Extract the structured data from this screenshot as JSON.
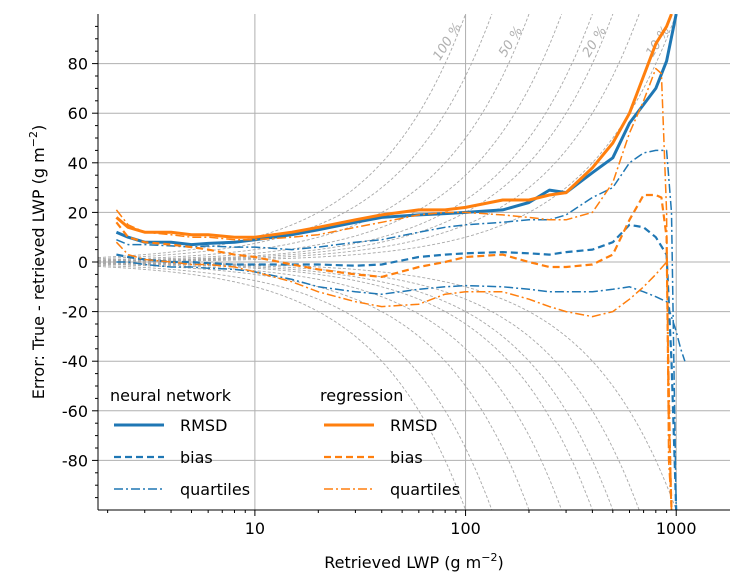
{
  "chart_data": {
    "type": "line",
    "title": "",
    "xlabel": "Retrieved LWP (g m",
    "xlabel_unit_sup": "−2",
    "xlabel_close": ")",
    "ylabel": "Error: True - retrieved LWP (g m",
    "ylabel_unit_sup": "−2",
    "ylabel_close": ")",
    "x_scale": "log",
    "xlim": [
      1.8,
      1800
    ],
    "ylim": [
      -100,
      100
    ],
    "grid": true,
    "x_ticks": [
      {
        "v": 10,
        "label": "10"
      },
      {
        "v": 100,
        "label": "100"
      },
      {
        "v": 1000,
        "label": "1000"
      }
    ],
    "y_ticks": [
      {
        "v": 80,
        "label": "80"
      },
      {
        "v": 60,
        "label": "60"
      },
      {
        "v": 40,
        "label": "40"
      },
      {
        "v": 20,
        "label": "20"
      },
      {
        "v": 0,
        "label": "0"
      },
      {
        "v": -20,
        "label": "-20"
      },
      {
        "v": -40,
        "label": "-40"
      },
      {
        "v": -60,
        "label": "-60"
      },
      {
        "v": -80,
        "label": "-80"
      }
    ],
    "relative_error_curves": [
      {
        "pct": 100,
        "label": "100 %"
      },
      {
        "pct": 50,
        "label": "50 %"
      },
      {
        "pct": 20,
        "label": "20 %"
      },
      {
        "pct": 10,
        "label": "10 %"
      }
    ],
    "legend": {
      "placement": "lower-left",
      "groups": [
        {
          "title": "neural network",
          "color": "#1f77b4",
          "entries": [
            {
              "label": "RMSD",
              "style": "solid"
            },
            {
              "label": "bias",
              "style": "dashed"
            },
            {
              "label": "quartiles",
              "style": "dashdot"
            }
          ]
        },
        {
          "title": "regression",
          "color": "#ff7f0e",
          "entries": [
            {
              "label": "RMSD",
              "style": "solid"
            },
            {
              "label": "bias",
              "style": "dashed"
            },
            {
              "label": "quartiles",
              "style": "dashdot"
            }
          ]
        }
      ]
    },
    "series": [
      {
        "name": "RMSD",
        "group": "neural network",
        "color": "#1f77b4",
        "style": "solid",
        "x": [
          2.2,
          2.5,
          3,
          4,
          5,
          6,
          8,
          10,
          15,
          20,
          30,
          40,
          60,
          80,
          100,
          150,
          200,
          250,
          300,
          400,
          500,
          600,
          800,
          900,
          1000
        ],
        "y": [
          12,
          10,
          8,
          8,
          7,
          7.5,
          8,
          9,
          11,
          13,
          16,
          18,
          19,
          19.5,
          20,
          21,
          24,
          29,
          28,
          36,
          42,
          56,
          70,
          81,
          100
        ]
      },
      {
        "name": "bias",
        "group": "neural network",
        "color": "#1f77b4",
        "style": "dashed",
        "x": [
          2.2,
          2.5,
          3,
          4,
          5,
          6,
          8,
          10,
          15,
          20,
          30,
          40,
          60,
          80,
          100,
          150,
          200,
          250,
          300,
          400,
          500,
          600,
          700,
          800,
          900,
          950,
          1000
        ],
        "y": [
          3,
          2,
          1,
          0,
          0,
          -0.5,
          -1,
          -1,
          -1,
          -1,
          -1.5,
          -1,
          2,
          3,
          3.5,
          4,
          3.5,
          3,
          4,
          5,
          8,
          15,
          14,
          10,
          3,
          -40,
          -100
        ]
      },
      {
        "name": "quartiles (upper)",
        "group": "neural network",
        "color": "#1f77b4",
        "style": "dashdot",
        "x": [
          2.2,
          2.5,
          3,
          4,
          5,
          6,
          8,
          10,
          15,
          20,
          30,
          40,
          60,
          80,
          100,
          150,
          200,
          250,
          300,
          400,
          500,
          600,
          700,
          800,
          900,
          950,
          1000
        ],
        "y": [
          9,
          7,
          7,
          6.5,
          6,
          6.5,
          6,
          6,
          5,
          6,
          8,
          9,
          12,
          14,
          15,
          16,
          17,
          17,
          19,
          26,
          30,
          40,
          44,
          45,
          45,
          20,
          -100
        ]
      },
      {
        "name": "quartiles (lower)",
        "group": "neural network",
        "color": "#1f77b4",
        "style": "dashdot",
        "x": [
          2.2,
          2.5,
          3,
          4,
          5,
          6,
          8,
          10,
          15,
          20,
          30,
          40,
          60,
          80,
          100,
          150,
          200,
          250,
          300,
          400,
          500,
          600,
          700,
          800,
          900,
          1000,
          1050,
          1100
        ],
        "y": [
          0,
          0,
          -1,
          -2,
          -2,
          -2.5,
          -3,
          -4,
          -7,
          -10,
          -12,
          -13,
          -11,
          -10,
          -9.5,
          -10,
          -11,
          -12,
          -12,
          -12,
          -11,
          -10,
          -12,
          -14,
          -16,
          -28,
          -35,
          -40
        ]
      },
      {
        "name": "RMSD",
        "group": "regression",
        "color": "#ff7f0e",
        "style": "solid",
        "x": [
          2.2,
          2.5,
          3,
          4,
          5,
          6,
          8,
          10,
          15,
          20,
          30,
          40,
          60,
          80,
          100,
          150,
          200,
          250,
          300,
          400,
          500,
          600,
          700,
          800,
          900,
          950
        ],
        "y": [
          18,
          14,
          12,
          12,
          11,
          11,
          10,
          10,
          12,
          14,
          17,
          19,
          21,
          21,
          22,
          25,
          25,
          27,
          28,
          38,
          48,
          60,
          75,
          88,
          95,
          100
        ]
      },
      {
        "name": "bias",
        "group": "regression",
        "color": "#ff7f0e",
        "style": "dashed",
        "x": [
          2.2,
          2.5,
          3,
          4,
          5,
          6,
          8,
          10,
          15,
          20,
          30,
          40,
          60,
          80,
          100,
          150,
          200,
          250,
          300,
          400,
          500,
          600,
          700,
          800,
          850,
          900,
          920,
          950
        ],
        "y": [
          16,
          10,
          8,
          7,
          6,
          5,
          3,
          2,
          -1,
          -3,
          -5,
          -6,
          -2,
          0,
          2,
          3,
          0,
          -2,
          -2,
          -1,
          3,
          17,
          27,
          27,
          26,
          10,
          -60,
          -100
        ]
      },
      {
        "name": "quartiles (upper)",
        "group": "regression",
        "color": "#ff7f0e",
        "style": "dashdot",
        "x": [
          2.2,
          2.5,
          3,
          4,
          5,
          6,
          8,
          10,
          15,
          20,
          30,
          40,
          60,
          80,
          100,
          150,
          200,
          250,
          300,
          400,
          500,
          600,
          700,
          800,
          850,
          900,
          920,
          950
        ],
        "y": [
          21,
          15,
          12,
          11,
          10,
          10,
          9,
          9,
          10,
          11,
          14,
          16,
          19,
          20,
          20,
          19,
          18,
          17,
          17,
          20,
          32,
          52,
          65,
          78,
          76,
          20,
          -80,
          -100
        ]
      },
      {
        "name": "quartiles (lower)",
        "group": "regression",
        "color": "#ff7f0e",
        "style": "dashdot",
        "x": [
          2.2,
          2.5,
          3,
          4,
          5,
          6,
          8,
          10,
          15,
          20,
          30,
          40,
          60,
          80,
          100,
          150,
          200,
          250,
          300,
          400,
          500,
          600,
          700,
          800,
          900,
          950
        ],
        "y": [
          8,
          3,
          1,
          0,
          -1,
          -1,
          -2,
          -4,
          -8,
          -12,
          -16,
          -18,
          -17,
          -13,
          -12,
          -12,
          -15,
          -18,
          -20,
          -22,
          -20,
          -15,
          -10,
          -5,
          0,
          -100
        ]
      }
    ]
  }
}
